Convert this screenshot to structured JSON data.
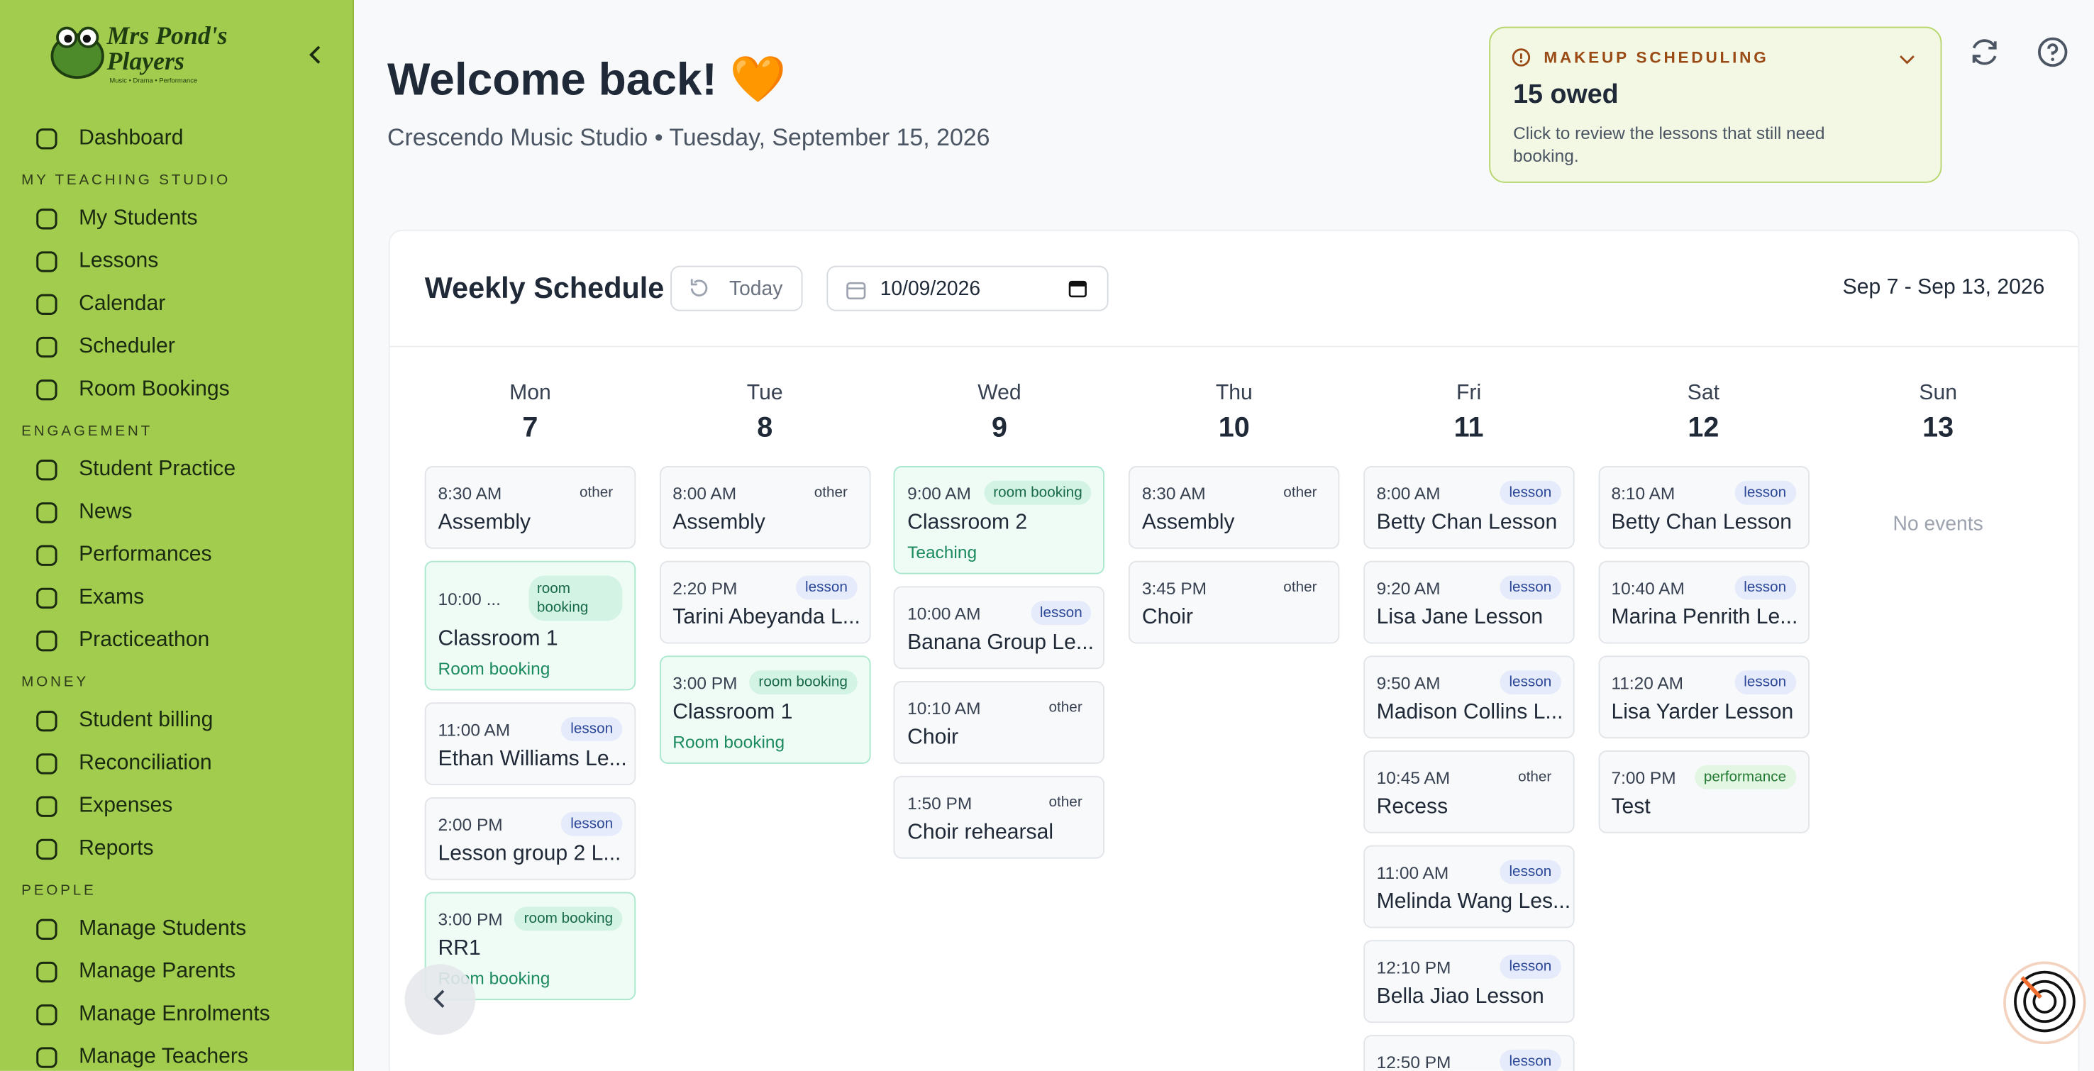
{
  "sidebar": {
    "logo_title": "Mrs Pond's Players",
    "logo_tagline": "Music • Drama • Performance",
    "dashboard": "Dashboard",
    "sections": [
      {
        "title": "MY TEACHING STUDIO",
        "items": [
          "My Students",
          "Lessons",
          "Calendar",
          "Scheduler",
          "Room Bookings"
        ]
      },
      {
        "title": "ENGAGEMENT",
        "items": [
          "Student Practice",
          "News",
          "Performances",
          "Exams",
          "Practiceathon"
        ]
      },
      {
        "title": "MONEY",
        "items": [
          "Student billing",
          "Reconciliation",
          "Expenses",
          "Reports"
        ]
      },
      {
        "title": "PEOPLE",
        "items": [
          "Manage Students",
          "Manage Parents",
          "Manage Enrolments",
          "Manage Teachers"
        ]
      }
    ]
  },
  "header": {
    "title": "Welcome back! 🧡",
    "subtitle": "Crescendo Music Studio • Tuesday, September 15, 2026"
  },
  "makeup": {
    "label": "MAKEUP SCHEDULING",
    "title": "15 owed",
    "text": "Click to review the lessons that still need booking."
  },
  "schedule": {
    "title": "Weekly Schedule",
    "today": "Today",
    "date": "10/09/2026",
    "range": "Sep 7 - Sep 13, 2026",
    "days": [
      {
        "name": "Mon",
        "number": "7",
        "events": [
          {
            "time": "8:30 AM",
            "tag": "other",
            "title": "Assembly"
          },
          {
            "time": "10:00 ...",
            "tag": "room booking",
            "title": "Classroom 1",
            "sub": "Room booking"
          },
          {
            "time": "11:00 AM",
            "tag": "lesson",
            "title": "Ethan Williams Le..."
          },
          {
            "time": "2:00 PM",
            "tag": "lesson",
            "title": "Lesson group 2 L..."
          },
          {
            "time": "3:00 PM",
            "tag": "room booking",
            "title": "RR1",
            "sub": "Room booking"
          }
        ]
      },
      {
        "name": "Tue",
        "number": "8",
        "events": [
          {
            "time": "8:00 AM",
            "tag": "other",
            "title": "Assembly"
          },
          {
            "time": "2:20 PM",
            "tag": "lesson",
            "title": "Tarini Abeyanda L..."
          },
          {
            "time": "3:00 PM",
            "tag": "room booking",
            "title": "Classroom 1",
            "sub": "Room booking"
          }
        ]
      },
      {
        "name": "Wed",
        "number": "9",
        "events": [
          {
            "time": "9:00 AM",
            "tag": "room booking",
            "title": "Classroom 2",
            "sub": "Teaching"
          },
          {
            "time": "10:00 AM",
            "tag": "lesson",
            "title": "Banana Group Le..."
          },
          {
            "time": "10:10 AM",
            "tag": "other",
            "title": "Choir"
          },
          {
            "time": "1:50 PM",
            "tag": "other",
            "title": "Choir rehearsal"
          }
        ]
      },
      {
        "name": "Thu",
        "number": "10",
        "events": [
          {
            "time": "8:30 AM",
            "tag": "other",
            "title": "Assembly"
          },
          {
            "time": "3:45 PM",
            "tag": "other",
            "title": "Choir"
          }
        ]
      },
      {
        "name": "Fri",
        "number": "11",
        "events": [
          {
            "time": "8:00 AM",
            "tag": "lesson",
            "title": "Betty Chan Lesson"
          },
          {
            "time": "9:20 AM",
            "tag": "lesson",
            "title": "Lisa Jane Lesson"
          },
          {
            "time": "9:50 AM",
            "tag": "lesson",
            "title": "Madison Collins L..."
          },
          {
            "time": "10:45 AM",
            "tag": "other",
            "title": "Recess"
          },
          {
            "time": "11:00 AM",
            "tag": "lesson",
            "title": "Melinda Wang Les..."
          },
          {
            "time": "12:10 PM",
            "tag": "lesson",
            "title": "Bella Jiao Lesson"
          },
          {
            "time": "12:50 PM",
            "tag": "lesson"
          }
        ]
      },
      {
        "name": "Sat",
        "number": "12",
        "events": [
          {
            "time": "8:10 AM",
            "tag": "lesson",
            "title": "Betty Chan Lesson"
          },
          {
            "time": "10:40 AM",
            "tag": "lesson",
            "title": "Marina Penrith Le..."
          },
          {
            "time": "11:20 AM",
            "tag": "lesson",
            "title": "Lisa Yarder Lesson"
          },
          {
            "time": "7:00 PM",
            "tag": "performance",
            "title": "Test"
          }
        ]
      },
      {
        "name": "Sun",
        "number": "13",
        "empty": "No events",
        "events": []
      }
    ]
  }
}
